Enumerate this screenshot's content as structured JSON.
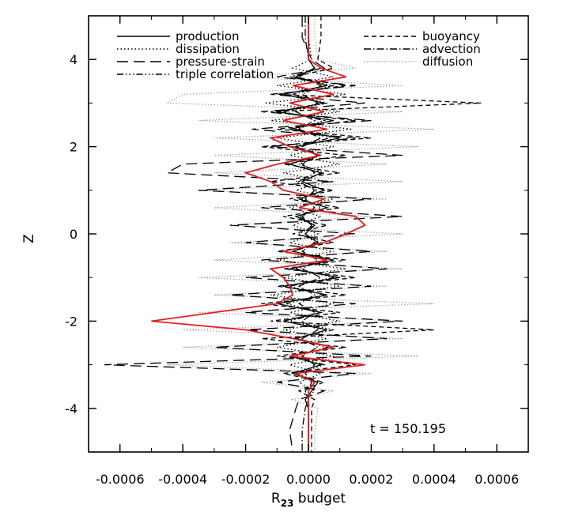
{
  "chart_data": {
    "type": "line",
    "title": "",
    "xlabel": "R",
    "xlabel_subscript": "23",
    "xlabel_suffix": " budget",
    "ylabel": "Z",
    "annotation": "t  =  150.195",
    "xlim": [
      -0.0007,
      0.0007
    ],
    "ylim": [
      -5,
      5
    ],
    "xticks": [
      -0.0006,
      -0.0004,
      -0.0002,
      0.0,
      0.0002,
      0.0004,
      0.0006
    ],
    "xtick_labels": [
      "-0.0006",
      "-0.0004",
      "-0.0002",
      "0.0000",
      "0.0002",
      "0.0004",
      "0.0006"
    ],
    "yticks": [
      -4,
      -2,
      0,
      2,
      4
    ],
    "ytick_labels": [
      "-4",
      "-2",
      "0",
      "2",
      "4"
    ],
    "grid": false,
    "legend_position": "top",
    "series": [
      {
        "name": "production",
        "style": "solid",
        "color": "#000000",
        "z": [
          5,
          4.5,
          4,
          3.8,
          3.6,
          3.4,
          3.2,
          3.0,
          2.8,
          2.6,
          2.4,
          2.2,
          2.0,
          1.8,
          1.6,
          1.4,
          1.2,
          1.0,
          0.8,
          0.6,
          0.4,
          0.2,
          0.0,
          -0.2,
          -0.4,
          -0.6,
          -0.8,
          -1.0,
          -1.2,
          -1.4,
          -1.6,
          -1.8,
          -2.0,
          -2.2,
          -2.4,
          -2.6,
          -2.8,
          -3.0,
          -3.2,
          -3.4,
          -3.6,
          -3.8,
          -4,
          -4.5,
          -5
        ],
        "values": [
          0.0,
          0.0,
          0.0,
          2e-05,
          -4e-05,
          6e-05,
          -8e-05,
          5e-05,
          -0.0001,
          8e-05,
          -6e-05,
          0.0001,
          -4e-05,
          3e-05,
          -6e-05,
          4e-05,
          -2e-05,
          5e-05,
          -3e-05,
          6e-05,
          -4e-05,
          2e-05,
          -1e-05,
          3e-05,
          -5e-05,
          8e-05,
          -6e-05,
          0.0001,
          -8e-05,
          6e-05,
          -0.0001,
          4e-05,
          -8e-05,
          6e-05,
          -4e-05,
          8e-05,
          -6e-05,
          4e-05,
          -5e-05,
          3e-05,
          1e-05,
          -1e-05,
          0.0,
          0.0,
          0.0
        ]
      },
      {
        "name": "dissipation",
        "style": "dotted",
        "color": "#000000",
        "z": [
          5,
          4.5,
          4,
          3.8,
          3.6,
          3.4,
          3.2,
          3.0,
          2.8,
          2.6,
          2.4,
          2.2,
          2.0,
          1.8,
          1.6,
          1.4,
          1.2,
          1.0,
          0.8,
          0.6,
          0.4,
          0.2,
          0.0,
          -0.2,
          -0.4,
          -0.6,
          -0.8,
          -1.0,
          -1.2,
          -1.4,
          -1.6,
          -1.8,
          -2.0,
          -2.2,
          -2.4,
          -2.6,
          -2.8,
          -3.0,
          -3.2,
          -3.4,
          -3.6,
          -3.8,
          -4,
          -4.5,
          -5
        ],
        "values": [
          0.0,
          0.0,
          1e-05,
          -5e-05,
          8e-05,
          -0.0001,
          0.00012,
          -0.00014,
          0.0001,
          -0.00012,
          0.00014,
          -0.0001,
          8e-05,
          -6e-05,
          0.0001,
          -8e-05,
          6e-05,
          -4e-05,
          8e-05,
          -6e-05,
          4e-05,
          -5e-05,
          3e-05,
          -6e-05,
          8e-05,
          -0.0001,
          0.00012,
          -8e-05,
          0.0001,
          -0.00012,
          8e-05,
          -6e-05,
          0.0001,
          -8e-05,
          6e-05,
          -0.0001,
          8e-05,
          -6e-05,
          4e-05,
          -3e-05,
          2e-05,
          -1e-05,
          0.0,
          0.0,
          0.0
        ]
      },
      {
        "name": "pressure-strain",
        "style": "longdash",
        "color": "#000000",
        "z": [
          5,
          4.5,
          4,
          3.8,
          3.6,
          3.4,
          3.2,
          3.0,
          2.8,
          2.6,
          2.4,
          2.2,
          2.0,
          1.8,
          1.6,
          1.4,
          1.2,
          1.0,
          0.8,
          0.6,
          0.4,
          0.2,
          0.0,
          -0.2,
          -0.4,
          -0.6,
          -0.8,
          -1.0,
          -1.2,
          -1.4,
          -1.6,
          -1.8,
          -2.0,
          -2.2,
          -2.4,
          -2.6,
          -2.8,
          -3.0,
          -3.2,
          -3.4,
          -3.6,
          -3.8,
          -4,
          -4.5,
          -5
        ],
        "values": [
          -2e-05,
          -2e-05,
          1e-05,
          5e-05,
          -0.0001,
          0.00015,
          -0.00012,
          0.00018,
          -0.00015,
          0.0002,
          -0.00018,
          0.00015,
          -0.00012,
          0.0003,
          -0.0004,
          -0.00045,
          8e-05,
          -0.00035,
          0.0002,
          -0.00015,
          0.0003,
          -0.00025,
          0.00015,
          -0.0002,
          0.0002,
          -0.00015,
          0.00025,
          -0.0002,
          0.0002,
          -0.00025,
          0.00015,
          -0.0002,
          0.0003,
          -0.0002,
          0.00025,
          -0.0003,
          0.0002,
          -0.00065,
          0.00015,
          -0.0001,
          5e-05,
          -3e-05,
          -4e-05,
          -6e-05,
          -5e-05
        ]
      },
      {
        "name": "triple correlation",
        "style": "dashdotdot",
        "color": "#000000",
        "z": [
          5,
          4.5,
          4,
          3.8,
          3.6,
          3.4,
          3.2,
          3.0,
          2.8,
          2.6,
          2.4,
          2.2,
          2.0,
          1.8,
          1.6,
          1.4,
          1.2,
          1.0,
          0.8,
          0.6,
          0.4,
          0.2,
          0.0,
          -0.2,
          -0.4,
          -0.6,
          -0.8,
          -1.0,
          -1.2,
          -1.4,
          -1.6,
          -1.8,
          -2.0,
          -2.2,
          -2.4,
          -2.6,
          -2.8,
          -3.0,
          -3.2,
          -3.4,
          -3.6,
          -3.8,
          -4,
          -4.5,
          -5
        ],
        "values": [
          0.0,
          0.0,
          0.0,
          4e-05,
          -6e-05,
          8e-05,
          -5e-05,
          6e-05,
          -8e-05,
          5e-05,
          -4e-05,
          7e-05,
          -5e-05,
          4e-05,
          -3e-05,
          5e-05,
          -4e-05,
          3e-05,
          -2e-05,
          4e-05,
          -3e-05,
          2e-05,
          -3e-05,
          4e-05,
          -5e-05,
          6e-05,
          -4e-05,
          8e-05,
          -6e-05,
          5e-05,
          -7e-05,
          4e-05,
          -6e-05,
          8e-05,
          -5e-05,
          6e-05,
          -4e-05,
          5e-05,
          -3e-05,
          2e-05,
          -1e-05,
          0.0,
          0.0,
          0.0,
          0.0
        ]
      },
      {
        "name": "buoyancy",
        "style": "shortdash",
        "color": "#000000",
        "z": [
          5,
          4.5,
          4,
          3.8,
          3.6,
          3.4,
          3.2,
          3.0,
          2.8,
          2.6,
          2.4,
          2.2,
          2.0,
          1.8,
          1.6,
          1.4,
          1.2,
          1.0,
          0.8,
          0.6,
          0.4,
          0.2,
          0.0,
          -0.2,
          -0.4,
          -0.6,
          -0.8,
          -1.0,
          -1.2,
          -1.4,
          -1.6,
          -1.8,
          -2.0,
          -2.2,
          -2.4,
          -2.6,
          -2.8,
          -3.0,
          -3.2,
          -3.4,
          -3.6,
          -3.8,
          -4,
          -4.5,
          -5
        ],
        "values": [
          4e-05,
          4e-05,
          3e-05,
          8e-05,
          -5e-05,
          0.00012,
          -0.0001,
          0.00055,
          -0.00012,
          0.00015,
          -0.0001,
          0.0002,
          -0.00015,
          0.00012,
          -8e-05,
          0.0001,
          -0.00012,
          8e-05,
          -6e-05,
          0.0001,
          -8e-05,
          6e-05,
          -5e-05,
          8e-05,
          -0.0001,
          0.00012,
          -8e-05,
          0.00015,
          -0.0001,
          0.00012,
          -0.00015,
          0.0001,
          -0.00012,
          0.0004,
          -0.00015,
          0.00012,
          -0.0001,
          0.00015,
          -8e-05,
          5e-05,
          -3e-05,
          2e-05,
          1e-05,
          1e-05,
          1e-05
        ]
      },
      {
        "name": "advection",
        "style": "dashdot",
        "color": "#000000",
        "z": [
          5,
          4.5,
          4,
          3.8,
          3.6,
          3.4,
          3.2,
          3.0,
          2.8,
          2.6,
          2.4,
          2.2,
          2.0,
          1.8,
          1.6,
          1.4,
          1.2,
          1.0,
          0.8,
          0.6,
          0.4,
          0.2,
          0.0,
          -0.2,
          -0.4,
          -0.6,
          -0.8,
          -1.0,
          -1.2,
          -1.4,
          -1.6,
          -1.8,
          -2.0,
          -2.2,
          -2.4,
          -2.6,
          -2.8,
          -3.0,
          -3.2,
          -3.4,
          -3.6,
          -3.8,
          -4,
          -4.5,
          -5
        ],
        "values": [
          -1e-05,
          -1e-05,
          0.0,
          2e-05,
          -3e-05,
          4e-05,
          -2e-05,
          3e-05,
          -4e-05,
          2e-05,
          -3e-05,
          4e-05,
          -2e-05,
          3e-05,
          -2e-05,
          2e-05,
          -3e-05,
          2e-05,
          -1e-05,
          2e-05,
          -2e-05,
          1e-05,
          -1e-05,
          2e-05,
          -2e-05,
          3e-05,
          -2e-05,
          4e-05,
          -3e-05,
          2e-05,
          -3e-05,
          2e-05,
          -2e-05,
          3e-05,
          -2e-05,
          3e-05,
          -2e-05,
          2e-05,
          -1e-05,
          1e-05,
          0.0,
          0.0,
          -1e-05,
          -2e-05,
          -2e-05
        ]
      },
      {
        "name": "diffusion",
        "style": "grey-dotted",
        "color": "#9a9a9a",
        "z": [
          5,
          4.5,
          4,
          3.8,
          3.6,
          3.4,
          3.2,
          3.0,
          2.8,
          2.6,
          2.4,
          2.2,
          2.0,
          1.8,
          1.6,
          1.4,
          1.2,
          1.0,
          0.8,
          0.6,
          0.4,
          0.2,
          0.0,
          -0.2,
          -0.4,
          -0.6,
          -0.8,
          -1.0,
          -1.2,
          -1.4,
          -1.6,
          -1.8,
          -2.0,
          -2.2,
          -2.4,
          -2.6,
          -2.8,
          -3.0,
          -3.2,
          -3.4,
          -3.6,
          -3.8,
          -4,
          -4.5,
          -5
        ],
        "values": [
          2e-05,
          2e-05,
          3e-05,
          0.00015,
          -0.0002,
          0.0003,
          -0.0004,
          -0.00045,
          0.0003,
          -0.00035,
          0.0004,
          -0.0003,
          0.00035,
          -0.0003,
          0.00025,
          -0.0003,
          0.0003,
          -0.00035,
          0.00025,
          -0.0003,
          0.0002,
          -0.00025,
          0.0003,
          -0.00025,
          0.00025,
          -0.0003,
          0.0003,
          -0.00035,
          0.00025,
          -0.0003,
          0.0004,
          -0.00035,
          0.0003,
          -0.0004,
          0.0003,
          -0.0004,
          0.00035,
          -0.00045,
          0.0002,
          -0.00015,
          8e-05,
          -5e-05,
          3e-05,
          2e-05,
          2e-05
        ]
      },
      {
        "name": "",
        "style": "solid",
        "color": "#e02020",
        "z": [
          5,
          4.5,
          4,
          3.8,
          3.6,
          3.4,
          3.2,
          3.0,
          2.8,
          2.6,
          2.4,
          2.2,
          2.0,
          1.8,
          1.6,
          1.4,
          1.2,
          1.0,
          0.8,
          0.6,
          0.4,
          0.2,
          0.0,
          -0.2,
          -0.4,
          -0.6,
          -0.8,
          -1.0,
          -1.2,
          -1.4,
          -1.6,
          -1.8,
          -2.0,
          -2.2,
          -2.4,
          -2.6,
          -2.8,
          -3.0,
          -3.2,
          -3.4,
          -3.6,
          -3.8,
          -4,
          -4.5,
          -5
        ],
        "values": [
          0.0,
          0.0,
          0.0,
          4e-05,
          0.00012,
          -5e-05,
          8e-05,
          -6e-05,
          5e-05,
          -8e-05,
          6e-05,
          -0.00012,
          -6e-05,
          4e-05,
          -0.0001,
          -0.0002,
          -0.00012,
          -8e-05,
          5e-05,
          -3e-05,
          0.00015,
          0.00018,
          0.00012,
          5e-05,
          -8e-05,
          6e-05,
          -0.00012,
          -8e-05,
          -6e-05,
          -5e-05,
          -0.0001,
          -0.0003,
          -0.0005,
          -0.0002,
          -5e-05,
          8e-05,
          -6e-05,
          0.00018,
          -4e-05,
          2e-05,
          0.0,
          0.0,
          0.0,
          0.0,
          0.0
        ]
      }
    ]
  }
}
